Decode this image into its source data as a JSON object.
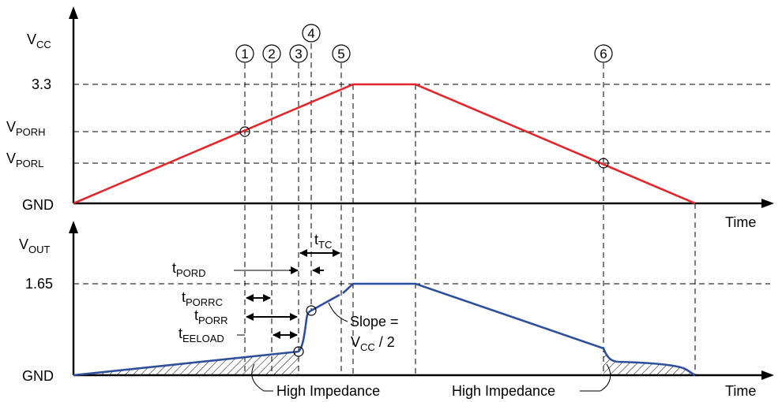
{
  "top_plot": {
    "y_axis_label": {
      "main": "V",
      "sub": "CC"
    },
    "x_axis_label": "Time",
    "y_ticks": [
      {
        "main": "3.3",
        "sub": ""
      },
      {
        "main": "V",
        "sub": "PORH"
      },
      {
        "main": "V",
        "sub": "PORL"
      },
      {
        "main": "GND",
        "sub": ""
      }
    ],
    "markers": [
      "1",
      "2",
      "3",
      "4",
      "5",
      "6"
    ]
  },
  "bottom_plot": {
    "y_axis_label": {
      "main": "V",
      "sub": "OUT"
    },
    "x_axis_label": "Time",
    "y_ticks": [
      {
        "main": "1.65",
        "sub": ""
      },
      {
        "main": "GND",
        "sub": ""
      }
    ],
    "timing": {
      "t_tc": {
        "main": "t",
        "sub": "TC"
      },
      "t_pord": {
        "main": "t",
        "sub": "PORD"
      },
      "t_porrc": {
        "main": "t",
        "sub": "PORRC"
      },
      "t_porr": {
        "main": "t",
        "sub": "PORR"
      },
      "t_eeload": {
        "main": "t",
        "sub": "EELOAD"
      }
    },
    "slope_annotation": {
      "line1": "Slope =",
      "line2_main": "V",
      "line2_sub": "CC",
      "line2_rest": " / 2"
    },
    "high_impedance_labels": [
      "High Impedance",
      "High Impedance"
    ]
  },
  "colors": {
    "vcc_trace": "#e3262b",
    "vout_trace": "#2e4f9c",
    "axes": "#000000"
  }
}
